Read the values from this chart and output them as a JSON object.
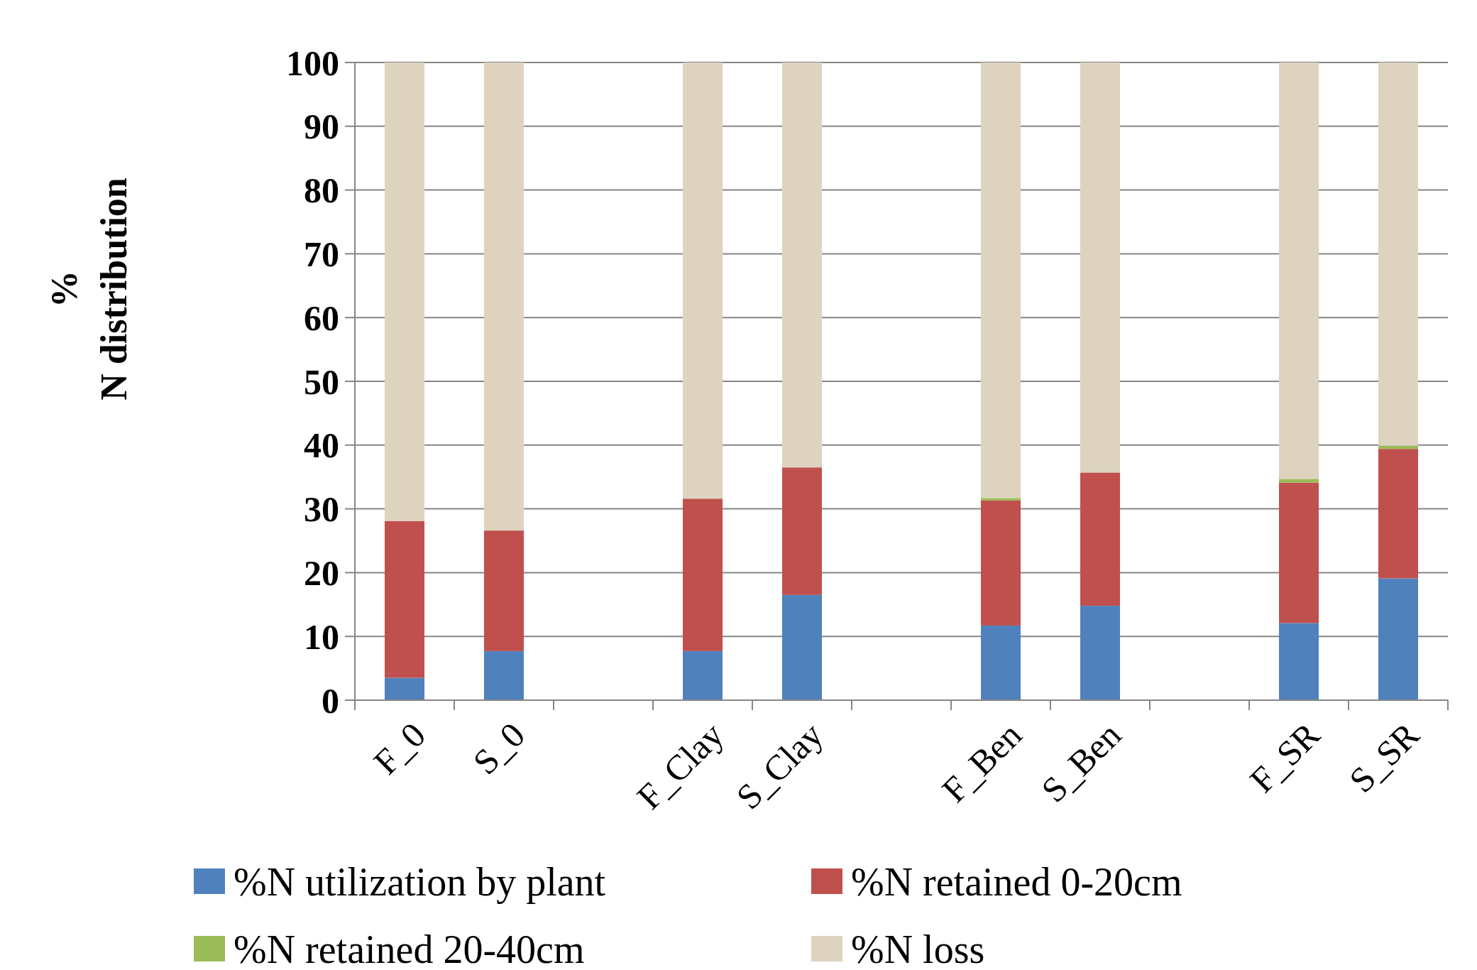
{
  "chart_data": {
    "type": "bar",
    "stacked": true,
    "ylabel": "%\nN distribution",
    "categories": [
      "F_0",
      "S_0",
      null,
      "F_Clay",
      "S_Clay",
      null,
      "F_Ben",
      "S_Ben",
      null,
      "F_SR",
      "S_SR"
    ],
    "series": [
      {
        "name": "%N utilization by plant",
        "color": "#4f81bd",
        "values": [
          3.5,
          7.7,
          null,
          7.7,
          16.5,
          null,
          11.7,
          14.8,
          null,
          12.1,
          19.1
        ]
      },
      {
        "name": "%N retained 0-20cm",
        "color": "#c0504d",
        "values": [
          24.6,
          18.9,
          null,
          23.9,
          20.0,
          null,
          19.6,
          20.9,
          null,
          22.0,
          20.3
        ]
      },
      {
        "name": "%N retained 20-40cm",
        "color": "#9bbb59",
        "values": [
          0,
          0,
          null,
          0,
          0,
          null,
          0.4,
          0,
          null,
          0.6,
          0.5
        ]
      },
      {
        "name": "%N loss",
        "color": "#ddd3bf",
        "values": [
          71.9,
          73.4,
          null,
          68.4,
          63.5,
          null,
          68.3,
          64.3,
          null,
          65.3,
          60.1
        ]
      }
    ],
    "ylim": [
      0,
      100
    ],
    "yticks": [
      0,
      10,
      20,
      30,
      40,
      50,
      60,
      70,
      80,
      90,
      100
    ],
    "grid": "y",
    "legend": "bottom"
  }
}
